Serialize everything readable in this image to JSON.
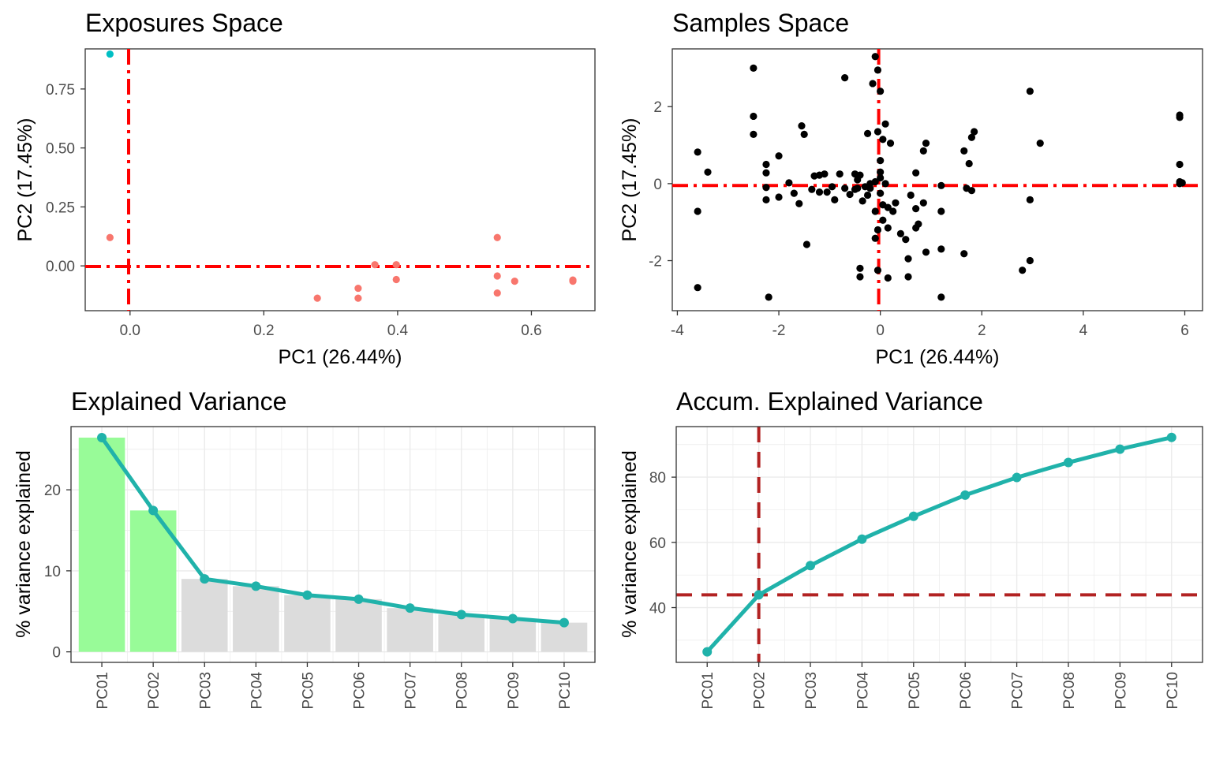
{
  "chart_data": [
    {
      "type": "scatter",
      "title": "Exposures Space",
      "xlabel": "PC1 (26.44%)",
      "ylabel": "PC2 (17.45%)",
      "xlim": [
        -0.067,
        0.695
      ],
      "ylim": [
        -0.19,
        0.92
      ],
      "xticks": [
        0.0,
        0.2,
        0.4,
        0.6
      ],
      "xtick_labels": [
        "0.0",
        "0.2",
        "0.4",
        "0.6"
      ],
      "yticks": [
        0.0,
        0.25,
        0.5,
        0.75
      ],
      "ytick_labels": [
        "0.00",
        "0.25",
        "0.50",
        "0.75"
      ],
      "grid": false,
      "reference_lines": {
        "x": 0,
        "y": 0,
        "color": "#ff0000"
      },
      "series": [
        {
          "color": "#00bfc4",
          "points": [
            [
              -0.03,
              0.898
            ]
          ]
        },
        {
          "color": "#f8766d",
          "points": [
            [
              -0.03,
              0.12
            ],
            [
              0.28,
              -0.137
            ],
            [
              0.341,
              -0.095
            ],
            [
              0.341,
              -0.137
            ],
            [
              0.366,
              0.005
            ],
            [
              0.398,
              0.005
            ],
            [
              0.398,
              -0.058
            ],
            [
              0.549,
              0.12
            ],
            [
              0.549,
              -0.043
            ],
            [
              0.549,
              -0.115
            ],
            [
              0.575,
              -0.065
            ],
            [
              0.662,
              -0.06
            ],
            [
              0.662,
              -0.065
            ]
          ]
        }
      ]
    },
    {
      "type": "scatter",
      "title": "Samples Space",
      "xlabel": "PC1 (26.44%)",
      "ylabel": "PC2 (17.45%)",
      "xlim": [
        -4.1,
        6.35
      ],
      "ylim": [
        -3.3,
        3.5
      ],
      "xticks": [
        -4,
        -2,
        0,
        2,
        4,
        6
      ],
      "xtick_labels": [
        "-4",
        "-2",
        "0",
        "2",
        "4",
        "6"
      ],
      "yticks": [
        -2,
        0,
        2
      ],
      "ytick_labels": [
        "-2",
        "0",
        "2"
      ],
      "grid": false,
      "reference_lines": {
        "x": 0,
        "y": 0,
        "color": "#ff0000"
      },
      "series": [
        {
          "color": "#000000",
          "points": [
            [
              -3.6,
              0.82
            ],
            [
              -3.6,
              -0.72
            ],
            [
              -3.6,
              -2.7
            ],
            [
              -3.4,
              0.3
            ],
            [
              -2.5,
              3.0
            ],
            [
              -2.5,
              1.75
            ],
            [
              -2.5,
              1.28
            ],
            [
              -2.25,
              0.5
            ],
            [
              -2.25,
              0.28
            ],
            [
              -2.25,
              -0.1
            ],
            [
              -2.25,
              -0.42
            ],
            [
              -2.2,
              -2.95
            ],
            [
              -2.0,
              0.72
            ],
            [
              -2.0,
              -0.35
            ],
            [
              -1.8,
              0.02
            ],
            [
              -1.7,
              -0.25
            ],
            [
              -1.6,
              -0.52
            ],
            [
              -1.55,
              1.5
            ],
            [
              -1.5,
              1.28
            ],
            [
              -1.45,
              -1.58
            ],
            [
              -1.35,
              -0.15
            ],
            [
              -1.3,
              0.2
            ],
            [
              -1.2,
              0.22
            ],
            [
              -1.2,
              -0.22
            ],
            [
              -1.1,
              0.25
            ],
            [
              -1.05,
              -0.22
            ],
            [
              -0.95,
              -0.08
            ],
            [
              -0.9,
              -0.42
            ],
            [
              -0.8,
              0.25
            ],
            [
              -0.7,
              2.75
            ],
            [
              -0.7,
              -0.12
            ],
            [
              -0.6,
              -0.28
            ],
            [
              -0.5,
              0.25
            ],
            [
              -0.5,
              -0.15
            ],
            [
              -0.45,
              -0.12
            ],
            [
              -0.45,
              0.1
            ],
            [
              -0.4,
              0.22
            ],
            [
              -0.4,
              -2.2
            ],
            [
              -0.4,
              -2.42
            ],
            [
              -0.35,
              -0.45
            ],
            [
              -0.3,
              -0.08
            ],
            [
              -0.25,
              1.3
            ],
            [
              -0.25,
              -0.3
            ],
            [
              -0.2,
              0.0
            ],
            [
              -0.2,
              -0.12
            ],
            [
              -0.15,
              2.6
            ],
            [
              -0.1,
              3.3
            ],
            [
              -0.1,
              0.05
            ],
            [
              -0.1,
              -0.72
            ],
            [
              -0.1,
              -1.42
            ],
            [
              -0.05,
              2.95
            ],
            [
              -0.05,
              1.35
            ],
            [
              -0.05,
              -2.25
            ],
            [
              -0.05,
              -1.2
            ],
            [
              0.0,
              0.6
            ],
            [
              0.0,
              0.3
            ],
            [
              0.0,
              2.4
            ],
            [
              0.0,
              0.15
            ],
            [
              0.0,
              -0.25
            ],
            [
              0.05,
              1.15
            ],
            [
              0.05,
              -0.55
            ],
            [
              0.05,
              -0.95
            ],
            [
              0.1,
              1.55
            ],
            [
              0.1,
              0.0
            ],
            [
              0.15,
              -0.62
            ],
            [
              0.15,
              -1.15
            ],
            [
              0.15,
              -2.45
            ],
            [
              0.2,
              1.05
            ],
            [
              0.25,
              -0.72
            ],
            [
              0.3,
              -0.5
            ],
            [
              0.4,
              -1.3
            ],
            [
              0.5,
              -1.45
            ],
            [
              0.55,
              -1.95
            ],
            [
              0.55,
              -2.42
            ],
            [
              0.6,
              -0.3
            ],
            [
              0.7,
              -0.65
            ],
            [
              0.7,
              0.28
            ],
            [
              0.7,
              -1.15
            ],
            [
              0.75,
              -1.05
            ],
            [
              0.85,
              -0.5
            ],
            [
              0.85,
              0.85
            ],
            [
              0.9,
              -1.78
            ],
            [
              0.9,
              1.05
            ],
            [
              1.2,
              -1.7
            ],
            [
              1.2,
              -2.95
            ],
            [
              1.2,
              -0.72
            ],
            [
              1.2,
              -0.05
            ],
            [
              1.65,
              0.85
            ],
            [
              1.65,
              -1.82
            ],
            [
              1.7,
              -0.12
            ],
            [
              1.75,
              0.52
            ],
            [
              1.8,
              1.2
            ],
            [
              1.8,
              -0.18
            ],
            [
              1.85,
              1.35
            ],
            [
              2.8,
              -2.25
            ],
            [
              2.95,
              2.4
            ],
            [
              2.95,
              -2.0
            ],
            [
              2.95,
              -0.42
            ],
            [
              3.15,
              1.05
            ],
            [
              5.9,
              1.78
            ],
            [
              5.9,
              1.72
            ],
            [
              5.9,
              0.5
            ],
            [
              5.9,
              0.05
            ],
            [
              5.9,
              0.0
            ],
            [
              5.95,
              0.02
            ]
          ]
        }
      ]
    },
    {
      "type": "bar",
      "title": "Explained Variance",
      "xlabel": "",
      "ylabel": "% variance explained",
      "categories": [
        "PC01",
        "PC02",
        "PC03",
        "PC04",
        "PC05",
        "PC06",
        "PC07",
        "PC08",
        "PC09",
        "PC10"
      ],
      "values": [
        26.44,
        17.45,
        9.0,
        8.1,
        7.0,
        6.5,
        5.4,
        4.6,
        4.1,
        3.6
      ],
      "bar_colors": [
        "#98fb98",
        "#98fb98",
        "#dcdcdc",
        "#dcdcdc",
        "#dcdcdc",
        "#dcdcdc",
        "#dcdcdc",
        "#dcdcdc",
        "#dcdcdc",
        "#dcdcdc"
      ],
      "line_color": "#20b2aa",
      "ylim": [
        -1.3,
        27.8
      ],
      "yticks": [
        0,
        10,
        20
      ],
      "ytick_labels": [
        "0",
        "10",
        "20"
      ],
      "grid": true
    },
    {
      "type": "line",
      "title": "Accum. Explained Variance",
      "xlabel": "",
      "ylabel": "% variance explained",
      "categories": [
        "PC01",
        "PC02",
        "PC03",
        "PC04",
        "PC05",
        "PC06",
        "PC07",
        "PC08",
        "PC09",
        "PC10"
      ],
      "values": [
        26.44,
        43.89,
        52.89,
        60.99,
        67.99,
        74.49,
        79.89,
        84.49,
        88.59,
        92.19
      ],
      "line_color": "#20b2aa",
      "reference_lines": {
        "x": "PC02",
        "y": 43.89,
        "color": "#b22222"
      },
      "ylim": [
        23.2,
        95.5
      ],
      "yticks": [
        40,
        60,
        80
      ],
      "ytick_labels": [
        "40",
        "60",
        "80"
      ],
      "grid": true
    }
  ]
}
